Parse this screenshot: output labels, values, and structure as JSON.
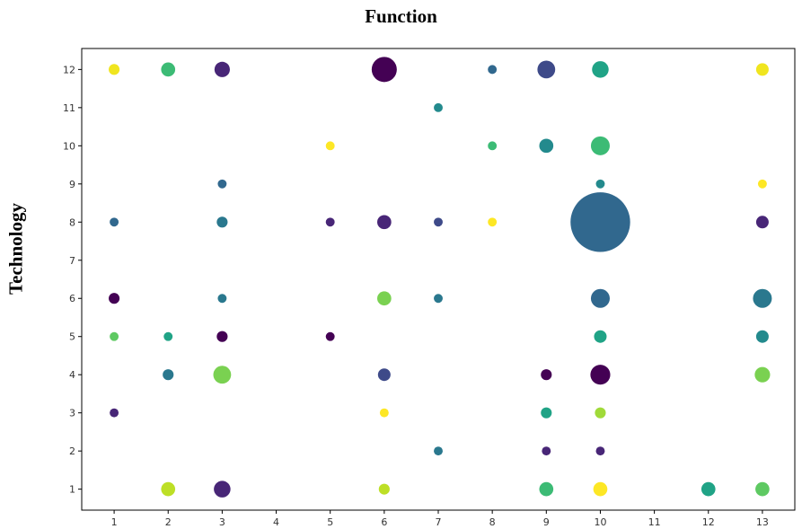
{
  "chart_data": {
    "type": "scatter",
    "title": "Function",
    "xlabel": "",
    "ylabel": "Technology",
    "x_ticks": [
      1,
      2,
      3,
      4,
      5,
      6,
      7,
      8,
      9,
      10,
      11,
      12,
      13
    ],
    "y_ticks": [
      1,
      2,
      3,
      4,
      5,
      6,
      7,
      8,
      9,
      10,
      11,
      12
    ],
    "xlim": [
      0.4,
      13.6
    ],
    "ylim": [
      0.45,
      12.55
    ],
    "grid": false,
    "size_scale": "relative count (bubble area)",
    "colormap": "viridis",
    "points": [
      {
        "x": 1,
        "y": 12,
        "size": 3,
        "color": "#f0e51f"
      },
      {
        "x": 2,
        "y": 12,
        "size": 5,
        "color": "#3cbb75"
      },
      {
        "x": 3,
        "y": 12,
        "size": 6,
        "color": "#482677"
      },
      {
        "x": 6,
        "y": 12,
        "size": 16,
        "color": "#440154"
      },
      {
        "x": 8,
        "y": 12,
        "size": 2,
        "color": "#31688e"
      },
      {
        "x": 9,
        "y": 12,
        "size": 8,
        "color": "#3e4a89"
      },
      {
        "x": 10,
        "y": 12,
        "size": 7,
        "color": "#20a386"
      },
      {
        "x": 13,
        "y": 12,
        "size": 4,
        "color": "#f0e51f"
      },
      {
        "x": 7,
        "y": 11,
        "size": 2,
        "color": "#238a8d"
      },
      {
        "x": 5,
        "y": 10,
        "size": 2,
        "color": "#fde725"
      },
      {
        "x": 8,
        "y": 10,
        "size": 2,
        "color": "#3cbb75"
      },
      {
        "x": 9,
        "y": 10,
        "size": 5,
        "color": "#238a8d"
      },
      {
        "x": 10,
        "y": 10,
        "size": 9,
        "color": "#3cbb75"
      },
      {
        "x": 3,
        "y": 9,
        "size": 2,
        "color": "#31688e"
      },
      {
        "x": 10,
        "y": 9,
        "size": 2,
        "color": "#238a8d"
      },
      {
        "x": 13,
        "y": 9,
        "size": 2,
        "color": "#fde725"
      },
      {
        "x": 1,
        "y": 8,
        "size": 2,
        "color": "#31688e"
      },
      {
        "x": 3,
        "y": 8,
        "size": 3,
        "color": "#2a788e"
      },
      {
        "x": 5,
        "y": 8,
        "size": 2,
        "color": "#482677"
      },
      {
        "x": 6,
        "y": 8,
        "size": 5,
        "color": "#482677"
      },
      {
        "x": 7,
        "y": 8,
        "size": 2,
        "color": "#3e4a89"
      },
      {
        "x": 8,
        "y": 8,
        "size": 2,
        "color": "#fde725"
      },
      {
        "x": 10,
        "y": 8,
        "size": 90,
        "color": "#31688e"
      },
      {
        "x": 13,
        "y": 8,
        "size": 4,
        "color": "#482677"
      },
      {
        "x": 1,
        "y": 6,
        "size": 3,
        "color": "#440154"
      },
      {
        "x": 3,
        "y": 6,
        "size": 2,
        "color": "#2a788e"
      },
      {
        "x": 6,
        "y": 6,
        "size": 5,
        "color": "#7ad151"
      },
      {
        "x": 7,
        "y": 6,
        "size": 2,
        "color": "#2a788e"
      },
      {
        "x": 10,
        "y": 6,
        "size": 9,
        "color": "#31688e"
      },
      {
        "x": 13,
        "y": 6,
        "size": 9,
        "color": "#2a788e"
      },
      {
        "x": 1,
        "y": 5,
        "size": 2,
        "color": "#5ec962"
      },
      {
        "x": 2,
        "y": 5,
        "size": 2,
        "color": "#20a386"
      },
      {
        "x": 3,
        "y": 5,
        "size": 3,
        "color": "#440154"
      },
      {
        "x": 5,
        "y": 5,
        "size": 2,
        "color": "#440154"
      },
      {
        "x": 10,
        "y": 5,
        "size": 4,
        "color": "#20a386"
      },
      {
        "x": 13,
        "y": 5,
        "size": 4,
        "color": "#238a8d"
      },
      {
        "x": 2,
        "y": 4,
        "size": 3,
        "color": "#2a788e"
      },
      {
        "x": 3,
        "y": 4,
        "size": 8,
        "color": "#7ad151"
      },
      {
        "x": 6,
        "y": 4,
        "size": 4,
        "color": "#3e4a89"
      },
      {
        "x": 9,
        "y": 4,
        "size": 3,
        "color": "#440154"
      },
      {
        "x": 10,
        "y": 4,
        "size": 10,
        "color": "#440154"
      },
      {
        "x": 13,
        "y": 4,
        "size": 6,
        "color": "#7ad151"
      },
      {
        "x": 1,
        "y": 3,
        "size": 2,
        "color": "#482677"
      },
      {
        "x": 6,
        "y": 3,
        "size": 2,
        "color": "#fde725"
      },
      {
        "x": 9,
        "y": 3,
        "size": 3,
        "color": "#20a386"
      },
      {
        "x": 10,
        "y": 3,
        "size": 3,
        "color": "#a0da39"
      },
      {
        "x": 7,
        "y": 2,
        "size": 2,
        "color": "#2a788e"
      },
      {
        "x": 9,
        "y": 2,
        "size": 2,
        "color": "#482677"
      },
      {
        "x": 10,
        "y": 2,
        "size": 2,
        "color": "#482677"
      },
      {
        "x": 2,
        "y": 1,
        "size": 5,
        "color": "#bddf26"
      },
      {
        "x": 3,
        "y": 1,
        "size": 7,
        "color": "#482677"
      },
      {
        "x": 6,
        "y": 1,
        "size": 3,
        "color": "#bddf26"
      },
      {
        "x": 9,
        "y": 1,
        "size": 5,
        "color": "#3cbb75"
      },
      {
        "x": 10,
        "y": 1,
        "size": 5,
        "color": "#fde725"
      },
      {
        "x": 12,
        "y": 1,
        "size": 5,
        "color": "#20a386"
      },
      {
        "x": 13,
        "y": 1,
        "size": 5,
        "color": "#5ec962"
      }
    ]
  }
}
